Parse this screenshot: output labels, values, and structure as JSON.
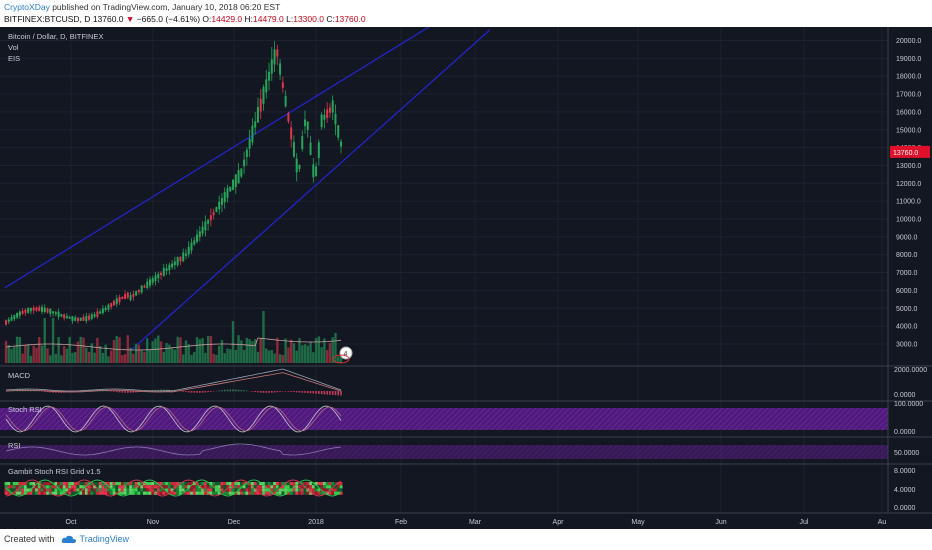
{
  "header": {
    "author": "CryptoXDay",
    "published": "published on TradingView.com, January 10, 2018 06:20 EST",
    "symbol": "BITFINEX:BTCUSD, D",
    "last": "13760.0",
    "change": "−665.0 (−4.61%)",
    "open_label": "O:",
    "open": "14429.0",
    "high_label": "H:",
    "high": "14479.0",
    "low_label": "L:",
    "low": "13300.0",
    "close_label": "C:",
    "close": "13760.0"
  },
  "legend": {
    "title": "Bitcoin / Dollar, D, BITFINEX",
    "vol": "Vol",
    "eis": "EIS"
  },
  "panes": {
    "macd": "MACD",
    "stoch": "Stoch RSI",
    "rsi": "RSI",
    "gambit": "Gambit Stoch RSI Grid v1.5"
  },
  "price_axis": [
    "20000.0",
    "19000.0",
    "18000.0",
    "17000.0",
    "16000.0",
    "15000.0",
    "14000.0",
    "13000.0",
    "12000.0",
    "11000.0",
    "10000.0",
    "9000.0",
    "8000.0",
    "7000.0",
    "6000.0",
    "5000.0",
    "4000.0",
    "3000.0"
  ],
  "last_price_tag": "13760.0",
  "macd_axis": [
    "2000.0000",
    "0.0000"
  ],
  "stoch_axis": [
    "100.0000",
    "0.0000"
  ],
  "rsi_axis": [
    "50.0000"
  ],
  "gambit_axis": [
    "8.0000",
    "4.0000",
    "0.0000"
  ],
  "time_axis": [
    "Oct",
    "Nov",
    "Dec",
    "2018",
    "Feb",
    "Mar",
    "Apr",
    "May",
    "Jun",
    "Jul",
    "Au"
  ],
  "badge": "4",
  "footer": {
    "created": "Created with",
    "brand": "TradingView"
  },
  "colors": {
    "up": "#26a65b",
    "down": "#e0364b",
    "background": "#131722",
    "trend": "#2323c8",
    "price_tag": "#e0102a"
  }
}
